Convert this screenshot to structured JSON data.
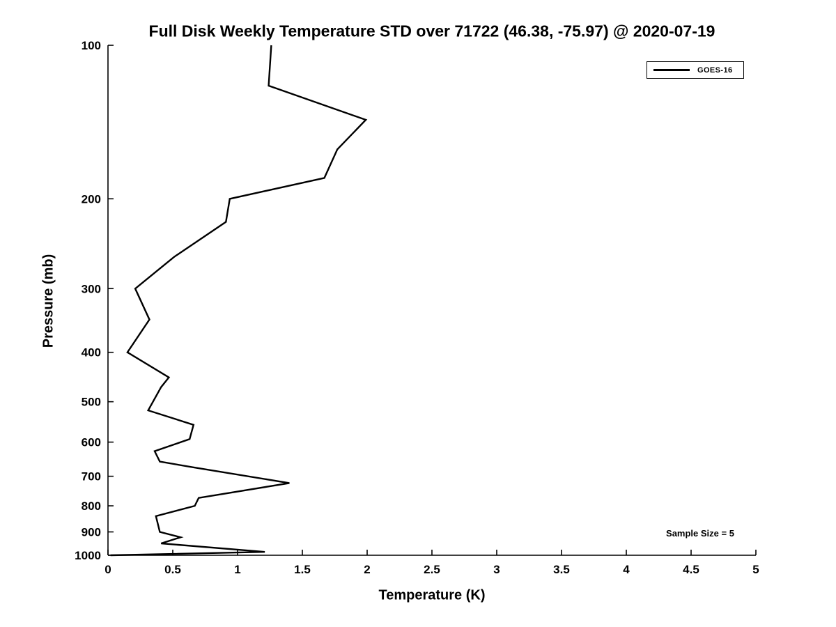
{
  "figure": {
    "background": "#ffffff",
    "line_color": "#000000",
    "text_color": "#000000"
  },
  "chart_data": {
    "type": "line",
    "title": "Full Disk Weekly Temperature STD over 71722 (46.38, -75.97) @ 2020-07-19",
    "xlabel": "Temperature (K)",
    "ylabel": "Pressure (mb)",
    "xlim": [
      0,
      5
    ],
    "ylim": [
      100,
      1000
    ],
    "y_scale": "log",
    "y_inverted": true,
    "grid": false,
    "x_ticks": [
      0,
      0.5,
      1,
      1.5,
      2,
      2.5,
      3,
      3.5,
      4,
      4.5,
      5
    ],
    "x_tick_labels": [
      "0",
      "0.5",
      "1",
      "1.5",
      "2",
      "2.5",
      "3",
      "3.5",
      "4",
      "4.5",
      "5"
    ],
    "y_ticks": [
      100,
      200,
      300,
      400,
      500,
      600,
      700,
      800,
      900,
      1000
    ],
    "y_tick_labels": [
      "100",
      "200",
      "300",
      "400",
      "500",
      "600",
      "700",
      "800",
      "900",
      "1000"
    ],
    "legend": {
      "position": "top-right",
      "entries": [
        {
          "label": "GOES-16",
          "color": "#000000",
          "style": "solid-line"
        }
      ]
    },
    "annotation": "Sample Size = 5",
    "series": [
      {
        "name": "GOES-16",
        "color": "#000000",
        "pressure_mb": [
          100,
          120,
          140,
          160,
          182,
          200,
          222,
          260,
          300,
          345,
          400,
          448,
          468,
          520,
          555,
          592,
          625,
          655,
          672,
          722,
          772,
          800,
          838,
          900,
          922,
          948,
          985,
          1000
        ],
        "std_k": [
          1.26,
          1.24,
          1.99,
          1.77,
          1.67,
          0.94,
          0.91,
          0.51,
          0.21,
          0.32,
          0.15,
          0.47,
          0.41,
          0.31,
          0.66,
          0.63,
          0.36,
          0.4,
          0.65,
          1.4,
          0.7,
          0.67,
          0.37,
          0.4,
          0.56,
          0.41,
          1.21,
          0.02
        ]
      }
    ]
  }
}
